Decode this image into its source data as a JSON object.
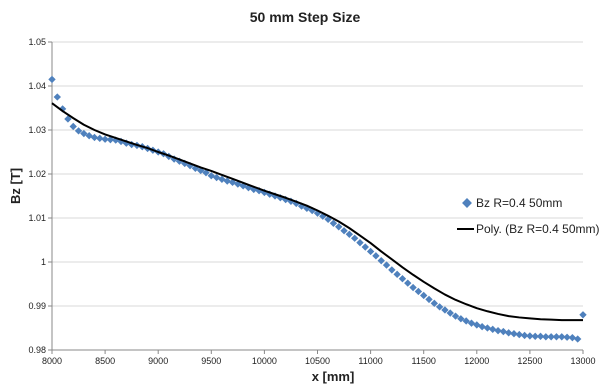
{
  "chart_data": {
    "type": "scatter",
    "title": "50 mm Step Size",
    "xlabel": "x [mm]",
    "ylabel": "Bz [T]",
    "xlim": [
      8000,
      13000
    ],
    "ylim": [
      0.98,
      1.05
    ],
    "x_ticks": [
      8000,
      8500,
      9000,
      9500,
      10000,
      10500,
      11000,
      11500,
      12000,
      12500,
      13000
    ],
    "y_ticks": [
      0.98,
      0.99,
      1,
      1.01,
      1.02,
      1.03,
      1.04,
      1.05
    ],
    "x_tick_labels": [
      "8000",
      "8500",
      "9000",
      "9500",
      "10000",
      "10500",
      "11000",
      "11500",
      "12000",
      "12500",
      "13000"
    ],
    "y_tick_labels": [
      "0.98",
      "0.99",
      "1",
      "1.01",
      "1.02",
      "1.03",
      "1.04",
      "1.05"
    ],
    "grid": "horizontal",
    "legend": "right",
    "series": [
      {
        "name": "Bz R=0.4 50mm",
        "kind": "markers",
        "marker": "diamond",
        "color": "#4F81BD",
        "x": [
          8000,
          8050,
          8100,
          8150,
          8200,
          8250,
          8300,
          8350,
          8400,
          8450,
          8500,
          8550,
          8600,
          8650,
          8700,
          8750,
          8800,
          8850,
          8900,
          8950,
          9000,
          9050,
          9100,
          9150,
          9200,
          9250,
          9300,
          9350,
          9400,
          9450,
          9500,
          9550,
          9600,
          9650,
          9700,
          9750,
          9800,
          9850,
          9900,
          9950,
          10000,
          10050,
          10100,
          10150,
          10200,
          10250,
          10300,
          10350,
          10400,
          10450,
          10500,
          10550,
          10600,
          10650,
          10700,
          10750,
          10800,
          10850,
          10900,
          10950,
          11000,
          11050,
          11100,
          11150,
          11200,
          11250,
          11300,
          11350,
          11400,
          11450,
          11500,
          11550,
          11600,
          11650,
          11700,
          11750,
          11800,
          11850,
          11900,
          11950,
          12000,
          12050,
          12100,
          12150,
          12200,
          12250,
          12300,
          12350,
          12400,
          12450,
          12500,
          12550,
          12600,
          12650,
          12700,
          12750,
          12800,
          12850,
          12900,
          12950,
          13000
        ],
        "y": [
          1.0415,
          1.0375,
          1.0348,
          1.0325,
          1.0308,
          1.0298,
          1.0292,
          1.0287,
          1.0283,
          1.0281,
          1.0279,
          1.0278,
          1.0277,
          1.0274,
          1.027,
          1.0267,
          1.0265,
          1.0262,
          1.0258,
          1.0254,
          1.025,
          1.0246,
          1.024,
          1.0234,
          1.0229,
          1.0224,
          1.0219,
          1.0213,
          1.0208,
          1.0203,
          1.0196,
          1.0192,
          1.0188,
          1.0184,
          1.0181,
          1.0177,
          1.0173,
          1.0169,
          1.0165,
          1.0162,
          1.0158,
          1.0154,
          1.015,
          1.0146,
          1.0142,
          1.0138,
          1.0133,
          1.0127,
          1.0122,
          1.0117,
          1.0111,
          1.0104,
          1.0097,
          1.0088,
          1.008,
          1.0071,
          1.0063,
          1.0054,
          1.0044,
          1.0034,
          1.0024,
          1.0014,
          1.0003,
          0.9993,
          0.9982,
          0.9972,
          0.9962,
          0.9952,
          0.9942,
          0.9933,
          0.9924,
          0.9915,
          0.9906,
          0.9898,
          0.9891,
          0.9884,
          0.9877,
          0.9871,
          0.9866,
          0.9861,
          0.9857,
          0.9853,
          0.985,
          0.9847,
          0.9844,
          0.9842,
          0.9839,
          0.9837,
          0.9835,
          0.9833,
          0.9832,
          0.9831,
          0.9831,
          0.983,
          0.983,
          0.983,
          0.983,
          0.9829,
          0.9828,
          0.9825,
          0.988
        ]
      },
      {
        "name": "Poly. (Bz R=0.4 50mm)",
        "kind": "line",
        "color": "#000000",
        "x": [
          8000,
          8100,
          8200,
          8300,
          8400,
          8500,
          8600,
          8700,
          8800,
          8900,
          9000,
          9100,
          9200,
          9300,
          9400,
          9500,
          9600,
          9700,
          9800,
          9900,
          10000,
          10100,
          10200,
          10300,
          10400,
          10500,
          10600,
          10700,
          10800,
          10900,
          11000,
          11100,
          11200,
          11300,
          11400,
          11500,
          11600,
          11700,
          11800,
          11900,
          12000,
          12100,
          12200,
          12300,
          12400,
          12500,
          12600,
          12700,
          12800,
          12900,
          13000
        ],
        "y": [
          1.0361,
          1.0343,
          1.0327,
          1.0312,
          1.03,
          1.029,
          1.0282,
          1.0274,
          1.0266,
          1.0259,
          1.025,
          1.0242,
          1.0233,
          1.0224,
          1.0215,
          1.0207,
          1.0198,
          1.0189,
          1.018,
          1.0171,
          1.0162,
          1.0154,
          1.0146,
          1.0137,
          1.0128,
          1.0117,
          1.0105,
          1.0092,
          1.0077,
          1.006,
          1.0043,
          1.0024,
          1.0006,
          0.9988,
          0.9971,
          0.9955,
          0.994,
          0.9926,
          0.9914,
          0.9904,
          0.9895,
          0.9888,
          0.9882,
          0.9877,
          0.9874,
          0.9872,
          0.987,
          0.9869,
          0.9868,
          0.9868,
          0.9868
        ]
      }
    ]
  }
}
